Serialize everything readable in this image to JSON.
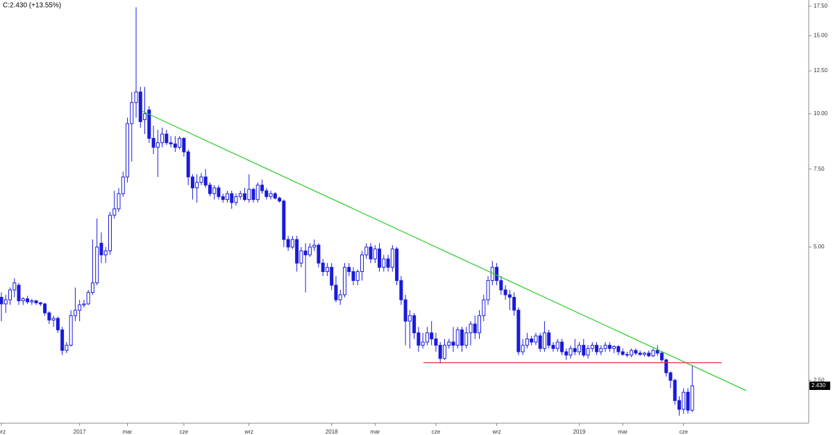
{
  "chart_data": {
    "type": "candlestick",
    "header": "C:2.430  (+13.55%)",
    "up_color": "#ffffff",
    "color": "#1a1adb",
    "log_scale": true,
    "ylim": [
      2.0,
      18.07
    ],
    "yticks": [
      {
        "value": 2.5,
        "label": "2.50"
      },
      {
        "value": 5,
        "label": "5.00"
      },
      {
        "value": 7.5,
        "label": "7.50"
      },
      {
        "value": 10,
        "label": "10.00"
      },
      {
        "value": 12.5,
        "label": "12.50"
      },
      {
        "value": 15,
        "label": "15.00"
      },
      {
        "value": 17.5,
        "label": "17.50"
      }
    ],
    "xlim": [
      -0.32,
      185.8
    ],
    "x_labels": [
      {
        "index": 0,
        "label": "wrz"
      },
      {
        "index": 18,
        "label": "2017"
      },
      {
        "index": 29,
        "label": "mar"
      },
      {
        "index": 42,
        "label": "cze"
      },
      {
        "index": 57,
        "label": "wrz"
      },
      {
        "index": 76,
        "label": "2018"
      },
      {
        "index": 86,
        "label": "mar"
      },
      {
        "index": 100,
        "label": "cze"
      },
      {
        "index": 114,
        "label": "wrz"
      },
      {
        "index": 133,
        "label": "2019"
      },
      {
        "index": 143,
        "label": "mar"
      },
      {
        "index": 157,
        "label": "cze"
      }
    ],
    "last_price": {
      "value": 2.43,
      "label": "2.430"
    },
    "lines": [
      {
        "color": "#22cc22",
        "x": [
          32.4,
          171.4
        ],
        "y": [
          10.14,
          2.37
        ]
      },
      {
        "color": "#e83030",
        "x": [
          97.1,
          165.8
        ],
        "y": [
          2.74,
          2.74
        ]
      }
    ],
    "ohlc": [
      [
        3.85,
        3.95,
        3.4,
        3.72
      ],
      [
        3.72,
        3.9,
        3.55,
        3.8
      ],
      [
        3.8,
        4.05,
        3.7,
        4.0
      ],
      [
        4.0,
        4.25,
        3.85,
        4.15
      ],
      [
        4.1,
        4.15,
        3.7,
        3.78
      ],
      [
        3.78,
        3.85,
        3.7,
        3.82
      ],
      [
        3.82,
        3.88,
        3.72,
        3.76
      ],
      [
        3.76,
        3.82,
        3.7,
        3.78
      ],
      [
        3.78,
        3.8,
        3.7,
        3.74
      ],
      [
        3.74,
        3.76,
        3.68,
        3.72
      ],
      [
        3.72,
        3.74,
        3.5,
        3.55
      ],
      [
        3.55,
        3.58,
        3.35,
        3.42
      ],
      [
        3.42,
        3.5,
        3.3,
        3.45
      ],
      [
        3.45,
        3.48,
        3.2,
        3.25
      ],
      [
        3.25,
        3.3,
        2.85,
        2.92
      ],
      [
        2.92,
        3.05,
        2.88,
        3.0
      ],
      [
        3.0,
        3.6,
        2.98,
        3.5
      ],
      [
        3.5,
        4.05,
        3.4,
        3.6
      ],
      [
        3.6,
        3.8,
        3.4,
        3.7
      ],
      [
        3.7,
        3.8,
        3.65,
        3.72
      ],
      [
        3.72,
        4.0,
        3.7,
        3.95
      ],
      [
        3.95,
        5.2,
        3.9,
        4.15
      ],
      [
        4.15,
        5.8,
        4.1,
        5.0
      ],
      [
        5.1,
        5.4,
        4.6,
        4.8
      ],
      [
        4.8,
        5.0,
        4.6,
        4.9
      ],
      [
        4.9,
        6.0,
        4.8,
        5.9
      ],
      [
        5.9,
        6.7,
        5.8,
        6.1
      ],
      [
        6.1,
        6.8,
        6.0,
        6.6
      ],
      [
        6.6,
        7.4,
        6.5,
        7.2
      ],
      [
        7.2,
        9.8,
        7.0,
        9.5
      ],
      [
        9.5,
        11.2,
        7.8,
        10.6
      ],
      [
        10.6,
        17.4,
        9.8,
        11.2
      ],
      [
        11.2,
        11.5,
        9.3,
        9.6
      ],
      [
        9.7,
        11.5,
        9.0,
        10.0
      ],
      [
        10.2,
        10.4,
        8.6,
        8.8
      ],
      [
        8.8,
        9.4,
        8.1,
        8.4
      ],
      [
        8.4,
        9.2,
        7.2,
        8.6
      ],
      [
        8.6,
        9.3,
        8.4,
        9.0
      ],
      [
        9.0,
        9.2,
        8.5,
        8.6
      ],
      [
        8.6,
        8.9,
        8.4,
        8.55
      ],
      [
        8.55,
        8.9,
        8.2,
        8.4
      ],
      [
        8.4,
        8.9,
        8.3,
        8.8
      ],
      [
        8.8,
        8.85,
        8.0,
        8.2
      ],
      [
        8.2,
        8.3,
        6.9,
        7.2
      ],
      [
        7.2,
        7.3,
        6.4,
        6.8
      ],
      [
        6.8,
        7.3,
        6.3,
        7.0
      ],
      [
        7.0,
        7.35,
        6.9,
        7.2
      ],
      [
        7.2,
        7.5,
        6.8,
        6.9
      ],
      [
        6.9,
        7.0,
        6.5,
        6.6
      ],
      [
        6.6,
        6.9,
        6.4,
        6.8
      ],
      [
        6.8,
        6.9,
        6.4,
        6.5
      ],
      [
        6.5,
        6.6,
        6.3,
        6.4
      ],
      [
        6.4,
        6.7,
        6.3,
        6.6
      ],
      [
        6.6,
        6.7,
        6.1,
        6.3
      ],
      [
        6.3,
        6.6,
        6.2,
        6.5
      ],
      [
        6.5,
        6.7,
        6.4,
        6.6
      ],
      [
        6.6,
        6.8,
        6.35,
        6.4
      ],
      [
        6.4,
        7.3,
        6.3,
        6.75
      ],
      [
        6.75,
        6.8,
        6.3,
        6.4
      ],
      [
        6.4,
        7.0,
        6.3,
        6.9
      ],
      [
        6.9,
        7.1,
        6.6,
        6.7
      ],
      [
        6.7,
        6.8,
        6.4,
        6.5
      ],
      [
        6.5,
        6.7,
        6.4,
        6.6
      ],
      [
        6.6,
        6.65,
        6.4,
        6.45
      ],
      [
        6.45,
        6.5,
        6.3,
        6.35
      ],
      [
        6.35,
        6.4,
        5.0,
        5.2
      ],
      [
        5.2,
        5.3,
        4.9,
        5.0
      ],
      [
        5.0,
        5.3,
        4.95,
        5.2
      ],
      [
        5.2,
        5.3,
        4.4,
        4.6
      ],
      [
        4.6,
        5.0,
        4.5,
        4.9
      ],
      [
        4.9,
        5.1,
        3.95,
        4.8
      ],
      [
        4.8,
        5.1,
        4.75,
        5.0
      ],
      [
        5.0,
        5.2,
        4.9,
        5.05
      ],
      [
        5.05,
        5.1,
        4.5,
        4.6
      ],
      [
        4.6,
        4.7,
        4.3,
        4.4
      ],
      [
        4.4,
        4.6,
        4.3,
        4.5
      ],
      [
        4.5,
        4.6,
        4.0,
        4.1
      ],
      [
        4.1,
        4.3,
        3.75,
        3.8
      ],
      [
        3.8,
        4.0,
        3.7,
        3.9
      ],
      [
        3.9,
        4.6,
        3.85,
        4.5
      ],
      [
        4.5,
        4.6,
        4.3,
        4.4
      ],
      [
        4.4,
        4.5,
        4.1,
        4.2
      ],
      [
        4.2,
        4.45,
        4.1,
        4.4
      ],
      [
        4.4,
        4.9,
        4.2,
        4.8
      ],
      [
        4.8,
        5.1,
        4.7,
        5.0
      ],
      [
        5.0,
        5.1,
        4.6,
        4.7
      ],
      [
        4.7,
        5.05,
        4.6,
        4.95
      ],
      [
        4.95,
        5.1,
        4.4,
        4.5
      ],
      [
        4.5,
        4.8,
        4.4,
        4.7
      ],
      [
        4.7,
        4.8,
        4.4,
        4.5
      ],
      [
        4.5,
        5.05,
        4.4,
        4.95
      ],
      [
        4.95,
        5.0,
        4.1,
        4.2
      ],
      [
        4.2,
        4.3,
        3.7,
        3.8
      ],
      [
        3.8,
        3.9,
        3.0,
        3.4
      ],
      [
        3.4,
        3.6,
        2.95,
        3.5
      ],
      [
        3.5,
        3.55,
        3.1,
        3.2
      ],
      [
        3.2,
        3.3,
        2.9,
        3.0
      ],
      [
        3.0,
        3.2,
        2.95,
        3.05
      ],
      [
        3.05,
        3.3,
        3.0,
        3.2
      ],
      [
        3.2,
        3.4,
        3.0,
        3.1
      ],
      [
        3.1,
        3.2,
        2.9,
        3.0
      ],
      [
        3.0,
        3.05,
        2.73,
        2.8
      ],
      [
        2.8,
        3.1,
        2.78,
        3.0
      ],
      [
        3.0,
        3.1,
        2.95,
        3.05
      ],
      [
        3.05,
        3.3,
        2.9,
        3.0
      ],
      [
        3.0,
        3.3,
        2.95,
        3.25
      ],
      [
        3.25,
        3.3,
        2.9,
        3.0
      ],
      [
        3.0,
        3.3,
        2.95,
        3.2
      ],
      [
        3.2,
        3.4,
        3.0,
        3.35
      ],
      [
        3.35,
        3.5,
        3.1,
        3.2
      ],
      [
        3.2,
        3.6,
        3.1,
        3.5
      ],
      [
        3.5,
        3.9,
        3.4,
        3.8
      ],
      [
        3.8,
        4.3,
        3.7,
        4.2
      ],
      [
        4.2,
        4.65,
        4.1,
        4.5
      ],
      [
        4.5,
        4.6,
        4.1,
        4.2
      ],
      [
        4.2,
        4.3,
        3.9,
        4.0
      ],
      [
        4.0,
        4.1,
        3.8,
        3.9
      ],
      [
        3.9,
        4.0,
        3.6,
        3.85
      ],
      [
        3.85,
        3.95,
        3.5,
        3.6
      ],
      [
        3.6,
        3.65,
        2.85,
        2.9
      ],
      [
        2.9,
        3.1,
        2.85,
        3.0
      ],
      [
        3.0,
        3.2,
        2.95,
        3.1
      ],
      [
        3.1,
        3.15,
        3.0,
        3.05
      ],
      [
        3.05,
        3.2,
        3.0,
        3.15
      ],
      [
        3.15,
        3.2,
        2.9,
        2.95
      ],
      [
        2.95,
        3.4,
        2.9,
        3.2
      ],
      [
        3.2,
        3.25,
        2.95,
        3.0
      ],
      [
        3.0,
        3.05,
        2.9,
        2.95
      ],
      [
        2.95,
        3.1,
        2.9,
        3.05
      ],
      [
        3.05,
        3.1,
        2.85,
        2.9
      ],
      [
        2.9,
        2.95,
        2.78,
        2.85
      ],
      [
        2.85,
        3.0,
        2.8,
        2.95
      ],
      [
        2.95,
        3.1,
        2.85,
        2.9
      ],
      [
        2.9,
        3.05,
        2.85,
        3.0
      ],
      [
        3.0,
        3.1,
        2.82,
        2.85
      ],
      [
        2.85,
        3.0,
        2.8,
        2.95
      ],
      [
        2.95,
        3.05,
        2.9,
        3.0
      ],
      [
        3.0,
        3.05,
        2.85,
        2.9
      ],
      [
        2.9,
        3.0,
        2.85,
        2.95
      ],
      [
        2.95,
        3.05,
        2.9,
        3.0
      ],
      [
        3.0,
        3.05,
        2.9,
        2.95
      ],
      [
        2.95,
        3.0,
        2.88,
        2.98
      ],
      [
        2.98,
        3.0,
        2.85,
        2.9
      ],
      [
        2.9,
        2.95,
        2.84,
        2.86
      ],
      [
        2.86,
        2.9,
        2.82,
        2.85
      ],
      [
        2.85,
        2.95,
        2.82,
        2.92
      ],
      [
        2.92,
        2.95,
        2.85,
        2.88
      ],
      [
        2.88,
        2.92,
        2.84,
        2.86
      ],
      [
        2.86,
        2.9,
        2.83,
        2.88
      ],
      [
        2.88,
        2.92,
        2.82,
        2.84
      ],
      [
        2.84,
        2.95,
        2.82,
        2.92
      ],
      [
        2.92,
        3.0,
        2.84,
        2.88
      ],
      [
        2.88,
        2.9,
        2.75,
        2.78
      ],
      [
        2.78,
        2.8,
        2.55,
        2.6
      ],
      [
        2.6,
        2.62,
        2.4,
        2.5
      ],
      [
        2.5,
        2.52,
        2.2,
        2.25
      ],
      [
        2.25,
        2.3,
        2.08,
        2.15
      ],
      [
        2.15,
        2.4,
        2.1,
        2.35
      ],
      [
        2.35,
        2.4,
        2.1,
        2.14
      ],
      [
        2.14,
        2.7,
        2.12,
        2.43
      ]
    ]
  }
}
